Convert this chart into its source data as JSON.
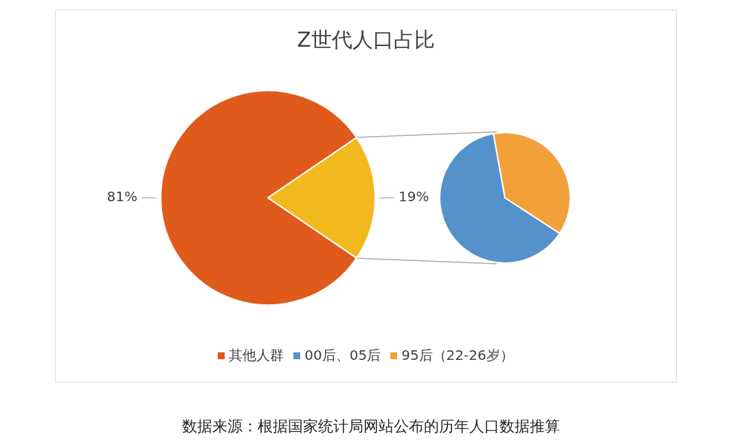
{
  "chart_data": [
    {
      "type": "pie",
      "title": "Z世代人口占比",
      "categories": [
        "其他人群",
        null
      ],
      "values": [
        81,
        19
      ],
      "colors": [
        "#e05a1c",
        "#f2b81e"
      ],
      "value_labels": [
        "81%",
        "19%"
      ],
      "legend": "bottom",
      "annotations": [
        "数据来源：根据国家统计局网站公布的历年人口数据推算"
      ]
    },
    {
      "type": "pie",
      "categories": [
        "00后、05后",
        "95后（22-26岁）"
      ],
      "values": [
        63,
        37
      ],
      "colors": [
        "#5592cc",
        "#f2a13a"
      ],
      "legend": "bottom"
    }
  ]
}
